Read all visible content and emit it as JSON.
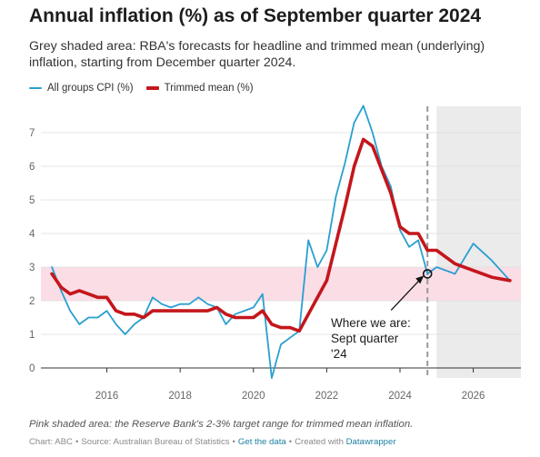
{
  "chart_data": {
    "type": "line",
    "title": "Annual inflation (%) as of September quarter 2024",
    "subtitle": "Grey shaded area: RBA's forecasts for headline and trimmed mean (underlying) inflation, starting from December quarter 2024.",
    "xlabel": "",
    "ylabel": "",
    "xlim": [
      2014.2,
      2027.3
    ],
    "ylim": [
      0,
      8
    ],
    "x_ticks": [
      2016,
      2018,
      2020,
      2022,
      2024,
      2026
    ],
    "y_ticks": [
      0,
      1,
      2,
      3,
      4,
      5,
      6,
      7
    ],
    "grid": "horizontal",
    "legend_position": "top-left",
    "target_band": [
      2,
      3
    ],
    "forecast_start": 2024.75,
    "current_marker": 2024.75,
    "series": [
      {
        "name": "All groups CPI (%)",
        "color": "#2a9fd0",
        "x": [
          2014.5,
          2014.75,
          2015.0,
          2015.25,
          2015.5,
          2015.75,
          2016.0,
          2016.25,
          2016.5,
          2016.75,
          2017.0,
          2017.25,
          2017.5,
          2017.75,
          2018.0,
          2018.25,
          2018.5,
          2018.75,
          2019.0,
          2019.25,
          2019.5,
          2019.75,
          2020.0,
          2020.25,
          2020.5,
          2020.75,
          2021.0,
          2021.25,
          2021.5,
          2021.75,
          2022.0,
          2022.25,
          2022.5,
          2022.75,
          2023.0,
          2023.25,
          2023.5,
          2023.75,
          2024.0,
          2024.25,
          2024.5,
          2024.75,
          2025.0,
          2025.5,
          2026.0,
          2026.5,
          2027.0
        ],
        "values": [
          3.0,
          2.3,
          1.7,
          1.3,
          1.5,
          1.5,
          1.7,
          1.3,
          1.0,
          1.3,
          1.5,
          2.1,
          1.9,
          1.8,
          1.9,
          1.9,
          2.1,
          1.9,
          1.8,
          1.3,
          1.6,
          1.7,
          1.8,
          2.2,
          -0.3,
          0.7,
          0.9,
          1.1,
          3.8,
          3.0,
          3.5,
          5.1,
          6.1,
          7.3,
          7.8,
          7.0,
          6.0,
          5.4,
          4.1,
          3.6,
          3.8,
          2.8,
          3.0,
          2.8,
          3.7,
          3.2,
          2.6
        ]
      },
      {
        "name": "Trimmed mean (%)",
        "color": "#c4161c",
        "x": [
          2014.5,
          2014.75,
          2015.0,
          2015.25,
          2015.5,
          2015.75,
          2016.0,
          2016.25,
          2016.5,
          2016.75,
          2017.0,
          2017.25,
          2017.5,
          2017.75,
          2018.0,
          2018.25,
          2018.5,
          2018.75,
          2019.0,
          2019.25,
          2019.5,
          2019.75,
          2020.0,
          2020.25,
          2020.5,
          2020.75,
          2021.0,
          2021.25,
          2021.5,
          2021.75,
          2022.0,
          2022.25,
          2022.5,
          2022.75,
          2023.0,
          2023.25,
          2023.5,
          2023.75,
          2024.0,
          2024.25,
          2024.5,
          2024.75,
          2025.0,
          2025.5,
          2026.0,
          2026.5,
          2027.0
        ],
        "values": [
          2.8,
          2.4,
          2.2,
          2.3,
          2.2,
          2.1,
          2.1,
          1.7,
          1.6,
          1.6,
          1.5,
          1.7,
          1.7,
          1.7,
          1.7,
          1.7,
          1.7,
          1.7,
          1.8,
          1.6,
          1.5,
          1.5,
          1.5,
          1.7,
          1.3,
          1.2,
          1.2,
          1.1,
          1.6,
          2.1,
          2.6,
          3.7,
          4.8,
          6.0,
          6.8,
          6.6,
          5.9,
          5.2,
          4.2,
          4.0,
          4.0,
          3.5,
          3.5,
          3.1,
          2.9,
          2.7,
          2.6
        ]
      }
    ],
    "annotation": {
      "lines": [
        "Where we are:",
        "Sept quarter",
        "'24"
      ]
    }
  },
  "footnote": "Pink shaded area: the Reserve Bank's 2-3% target range for trimmed mean inflation.",
  "credits": {
    "chart": "Chart: ABC",
    "source": "Source: Australian Bureau of Statistics",
    "get_data": "Get the data",
    "created_with": "Created with",
    "tool": "Datawrapper"
  },
  "colors": {
    "band": "#fbdde6",
    "forecast": "#ebebeb",
    "grid": "#dddddd",
    "link": "#1d81a2"
  }
}
